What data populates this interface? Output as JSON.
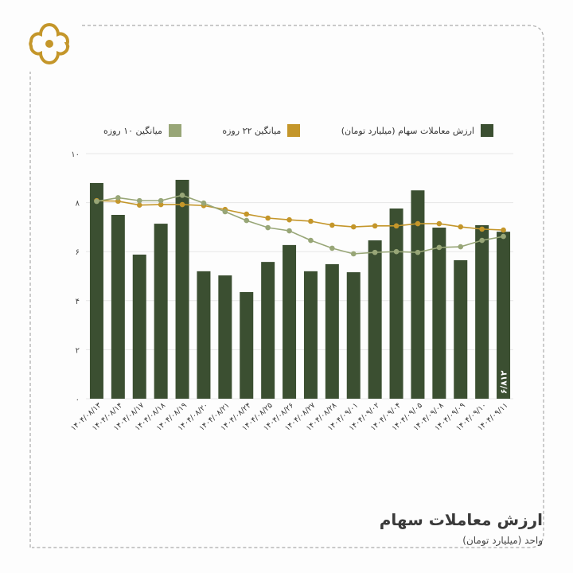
{
  "title": "ارزش معاملات سهام",
  "subtitle": "واحد (میلیارد تومان)",
  "colors": {
    "bar": "#3b4f31",
    "ma22": "#c4962a",
    "ma10": "#98a677",
    "logo": "#c4962a"
  },
  "chart_data": {
    "type": "bar",
    "title": "ارزش معاملات سهام",
    "ylabel": "واحد (میلیارد تومان)",
    "ylim": [
      0,
      10
    ],
    "yticks": [
      "۰",
      "۲",
      "۴",
      "۶",
      "۸",
      "۱۰"
    ],
    "ytick_values": [
      0,
      2,
      4,
      6,
      8,
      10
    ],
    "grid": true,
    "legend_position": "top",
    "legend": [
      "ارزش معاملات سهام (میلیارد تومان)",
      "میانگین ۲۲ روزه",
      "میانگین ۱۰ روزه"
    ],
    "categories": [
      "۱۴۰۴/۰۸/۱۳",
      "۱۴۰۴/۰۸/۱۴",
      "۱۴۰۴/۰۸/۱۷",
      "۱۴۰۴/۰۸/۱۸",
      "۱۴۰۴/۰۸/۱۹",
      "۱۴۰۴/۰۸/۲۰",
      "۱۴۰۴/۰۸/۲۱",
      "۱۴۰۴/۰۸/۲۴",
      "۱۴۰۴/۰۸/۲۵",
      "۱۴۰۴/۰۸/۲۶",
      "۱۴۰۴/۰۸/۲۷",
      "۱۴۰۴/۰۸/۲۸",
      "۱۴۰۴/۰۹/۰۱",
      "۱۴۰۴/۰۹/۰۲",
      "۱۴۰۴/۰۹/۰۴",
      "۱۴۰۴/۰۹/۰۵",
      "۱۴۰۴/۰۹/۰۸",
      "۱۴۰۴/۰۹/۰۹",
      "۱۴۰۴/۰۹/۱۰",
      "۱۴۰۴/۰۹/۱۱"
    ],
    "series": [
      {
        "name": "ارزش معاملات سهام (میلیارد تومان)",
        "type": "bar",
        "values": [
          8.8,
          7.5,
          5.88,
          7.14,
          8.93,
          5.2,
          5.03,
          4.35,
          5.58,
          6.27,
          5.2,
          5.49,
          5.16,
          6.46,
          7.76,
          8.5,
          6.98,
          5.65,
          7.08,
          6.812
        ]
      },
      {
        "name": "میانگین ۲۲ روزه",
        "type": "line",
        "values": [
          8.08,
          8.06,
          7.9,
          7.92,
          7.92,
          7.88,
          7.72,
          7.53,
          7.37,
          7.3,
          7.24,
          7.08,
          7.01,
          7.05,
          7.05,
          7.14,
          7.14,
          7.01,
          6.92,
          6.88
        ]
      },
      {
        "name": "میانگین ۱۰ روزه",
        "type": "line",
        "values": [
          8.05,
          8.2,
          8.08,
          8.08,
          8.3,
          7.98,
          7.63,
          7.27,
          6.98,
          6.85,
          6.46,
          6.14,
          5.91,
          5.97,
          6.0,
          5.97,
          6.17,
          6.2,
          6.46,
          6.62
        ]
      }
    ],
    "annotations": [
      {
        "index": 19,
        "text": "۶/۸۱۲"
      }
    ]
  }
}
